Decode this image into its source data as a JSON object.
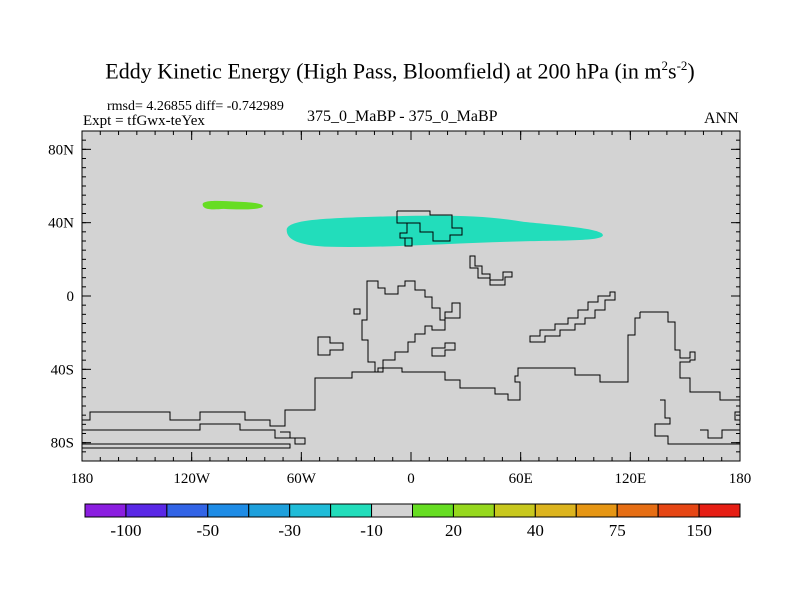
{
  "chart_data": {
    "type": "map",
    "title": "Eddy Kinetic Energy (High Pass, Bloomfield) at 200 hPa (in m",
    "title_unit_exp1": "2",
    "title_unit_mid": "s",
    "title_unit_exp2": "-2",
    "title_close": ")",
    "stats": "rmsd= 4.26855 diff= -0.742989",
    "expt": "Expt = tfGwx-teYex",
    "case": "375_0_MaBP - 375_0_MaBP",
    "period": "ANN",
    "xlim": [
      -180,
      180
    ],
    "ylim": [
      -90,
      90
    ],
    "x_ticks": [
      {
        "value": -180,
        "label": "180"
      },
      {
        "value": -120,
        "label": "120W"
      },
      {
        "value": -60,
        "label": "60W"
      },
      {
        "value": 0,
        "label": "0"
      },
      {
        "value": 60,
        "label": "60E"
      },
      {
        "value": 120,
        "label": "120E"
      },
      {
        "value": 180,
        "label": "180"
      }
    ],
    "y_ticks": [
      {
        "value": 80,
        "label": "80N"
      },
      {
        "value": 40,
        "label": "40N"
      },
      {
        "value": 0,
        "label": "0"
      },
      {
        "value": -40,
        "label": "40S"
      },
      {
        "value": -80,
        "label": "80S"
      }
    ],
    "background_color": "#d3d3d3",
    "anomaly_regions": [
      {
        "name": "north-pacific-positive",
        "value_bin": "10 to 20",
        "color": "#66dd22",
        "lon_range": [
          -114,
          -81
        ],
        "lat_range": [
          47,
          52
        ]
      },
      {
        "name": "north-atlantic-negative",
        "value_bin": "-20 to -10",
        "color": "#22ddbb",
        "lon_range": [
          -68,
          105
        ],
        "lat_range": [
          26,
          44
        ]
      }
    ],
    "colorbar": {
      "colors": [
        "#8b1ee0",
        "#5a28e6",
        "#3264e6",
        "#1e8ce6",
        "#1ea0dc",
        "#20bcd8",
        "#22ddbb",
        "#d3d3d3",
        "#66dd22",
        "#96d81e",
        "#c8c81e",
        "#dcb41e",
        "#e69614",
        "#e66e14",
        "#e64614",
        "#e61e14"
      ],
      "labels": [
        {
          "after_box": 1,
          "text": "-100"
        },
        {
          "after_box": 3,
          "text": "-50"
        },
        {
          "after_box": 5,
          "text": "-30"
        },
        {
          "after_box": 7,
          "text": "-10"
        },
        {
          "after_box": 9,
          "text": "20"
        },
        {
          "after_box": 11,
          "text": "40"
        },
        {
          "after_box": 13,
          "text": "75"
        },
        {
          "after_box": 15,
          "text": "150"
        }
      ]
    }
  }
}
